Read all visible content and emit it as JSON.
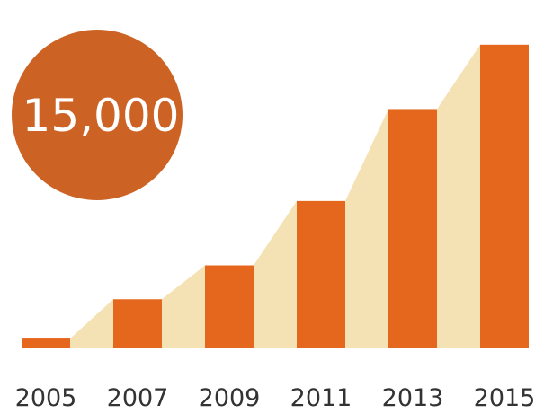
{
  "chart_data": {
    "type": "bar",
    "categories": [
      "2005",
      "2007",
      "2009",
      "2011",
      "2013",
      "2015"
    ],
    "values": [
      550,
      2750,
      4650,
      8250,
      13400,
      17000
    ],
    "ylim": [
      0,
      18500
    ],
    "grid": false,
    "title": "",
    "xlabel": "",
    "ylabel": ""
  },
  "badge": {
    "value": "15,000"
  },
  "colors": {
    "bar": "#e5671d",
    "area": "#f5e2b4",
    "badge": "#cc6325",
    "text": "#333333"
  }
}
